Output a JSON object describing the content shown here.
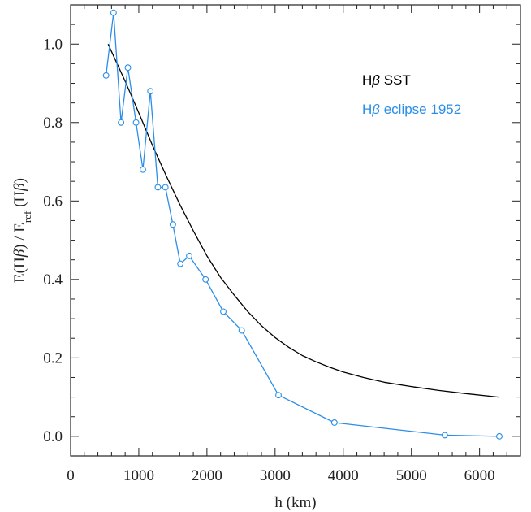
{
  "chart_data": {
    "type": "line",
    "xlabel": "h (km)",
    "ylabel_parts": {
      "pre": "E(H",
      "beta": "β",
      "mid": ") / E",
      "sub": "ref",
      "post": " (H",
      "beta2": "β",
      "end": ")"
    },
    "xlim": [
      0,
      6600
    ],
    "ylim": [
      -0.05,
      1.1
    ],
    "x_ticks": [
      "0",
      "1000",
      "2000",
      "3000",
      "4000",
      "5000",
      "6000"
    ],
    "y_ticks": [
      "0.0",
      "0.2",
      "0.4",
      "0.6",
      "0.8",
      "1.0"
    ],
    "legend": [
      {
        "prefix": "H",
        "beta": "β",
        "text": " SST",
        "color": "#000000"
      },
      {
        "prefix": "H",
        "beta": "β",
        "text": " eclipse 1952",
        "color": "#2a8ee8"
      }
    ],
    "series": [
      {
        "name": "Hβ SST",
        "color": "#000000",
        "marker": "none",
        "x": [
          550,
          800,
          1000,
          1200,
          1400,
          1600,
          1800,
          2000,
          2200,
          2400,
          2600,
          2800,
          3000,
          3200,
          3400,
          3600,
          3800,
          4000,
          4300,
          4600,
          5000,
          5400,
          5800,
          6280
        ],
        "y": [
          1.0,
          0.905,
          0.825,
          0.742,
          0.665,
          0.592,
          0.524,
          0.46,
          0.405,
          0.36,
          0.318,
          0.282,
          0.252,
          0.227,
          0.206,
          0.19,
          0.176,
          0.164,
          0.15,
          0.138,
          0.127,
          0.117,
          0.109,
          0.1
        ]
      },
      {
        "name": "Hβ eclipse 1952",
        "color": "#2a8ee8",
        "marker": "circle",
        "x": [
          520,
          630,
          740,
          840,
          960,
          1060,
          1170,
          1280,
          1390,
          1500,
          1610,
          1740,
          1980,
          2240,
          2510,
          3050,
          3870,
          5490,
          6290
        ],
        "y": [
          0.92,
          1.08,
          0.8,
          0.94,
          0.8,
          0.68,
          0.88,
          0.635,
          0.635,
          0.54,
          0.44,
          0.46,
          0.4,
          0.318,
          0.27,
          0.105,
          0.035,
          0.003,
          0.0
        ]
      }
    ]
  }
}
